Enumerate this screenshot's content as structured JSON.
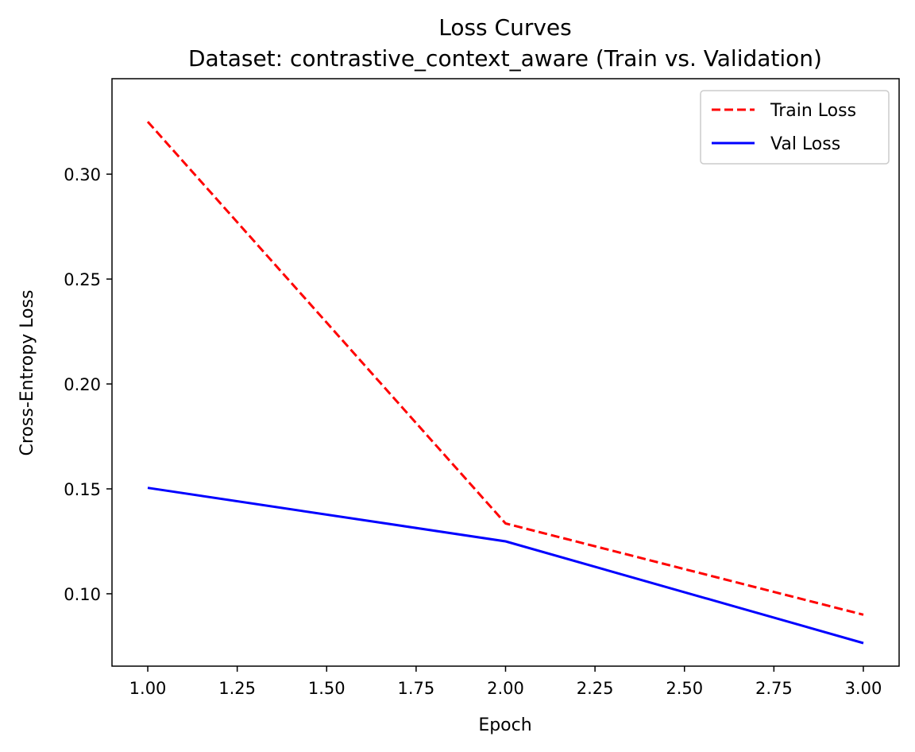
{
  "chart_data": {
    "type": "line",
    "title": "Loss Curves",
    "subtitle": "Dataset: contrastive_context_aware (Train vs. Validation)",
    "xlabel": "Epoch",
    "ylabel": "Cross-Entropy Loss",
    "x": [
      1,
      2,
      3
    ],
    "xlim": [
      0.9,
      3.1
    ],
    "ylim": [
      0.0655,
      0.3455
    ],
    "xticks": [
      "1.00",
      "1.25",
      "1.50",
      "1.75",
      "2.00",
      "2.25",
      "2.50",
      "2.75",
      "3.00"
    ],
    "yticks": [
      "0.10",
      "0.15",
      "0.20",
      "0.25",
      "0.30"
    ],
    "grid": false,
    "legend_position": "top-right",
    "series": [
      {
        "name": "Train Loss",
        "values": [
          0.325,
          0.1335,
          0.09
        ],
        "color": "#ff0000",
        "style": "dashed"
      },
      {
        "name": "Val Loss",
        "values": [
          0.1505,
          0.125,
          0.0765
        ],
        "color": "#0000ff",
        "style": "solid"
      }
    ]
  }
}
